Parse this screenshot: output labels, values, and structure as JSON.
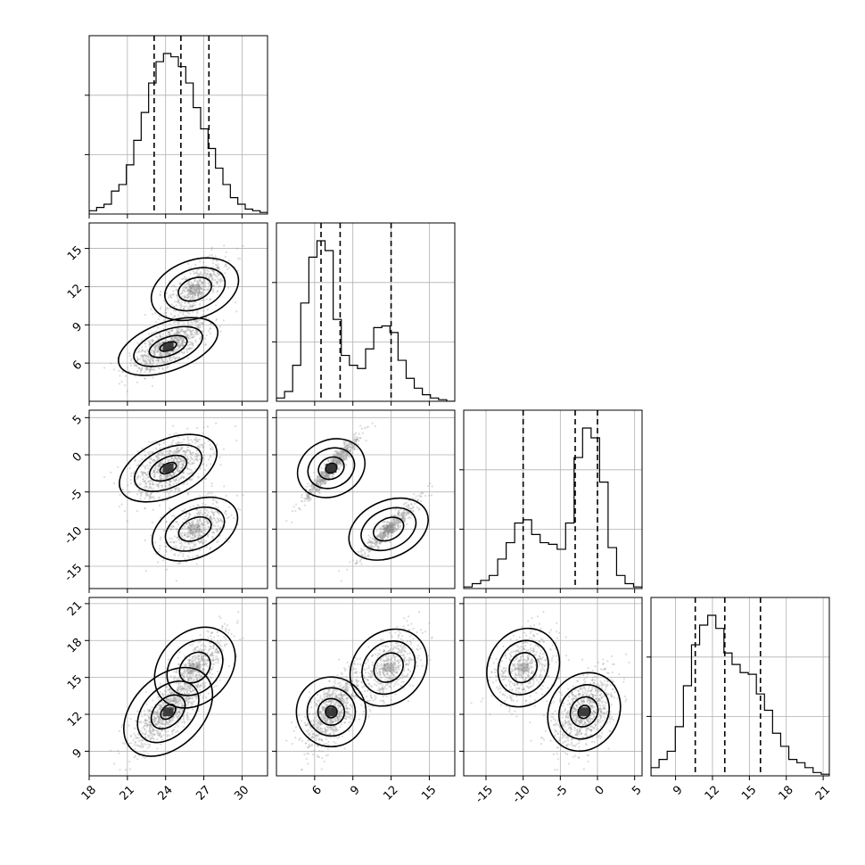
{
  "chart_data": {
    "type": "corner",
    "parameters": [
      {
        "range": [
          18,
          32
        ],
        "ticks": [
          18,
          21,
          24,
          27,
          30
        ],
        "quantiles": [
          23.1,
          25.2,
          27.4
        ],
        "hist_edges_range": [
          18,
          32
        ],
        "hist_counts": [
          2,
          4,
          6,
          14,
          18,
          30,
          45,
          62,
          80,
          93,
          98,
          96,
          90,
          80,
          65,
          52,
          40,
          28,
          18,
          10,
          6,
          3,
          2,
          1
        ]
      },
      {
        "range": [
          3,
          17
        ],
        "ticks": [
          6,
          9,
          12,
          15
        ],
        "quantiles": [
          6.5,
          8.0,
          12.0
        ],
        "hist_edges_range": [
          3,
          17
        ],
        "hist_counts": [
          2,
          6,
          22,
          60,
          88,
          98,
          92,
          50,
          28,
          22,
          20,
          32,
          45,
          46,
          42,
          25,
          14,
          8,
          4,
          2,
          1,
          0
        ]
      },
      {
        "range": [
          -18,
          6
        ],
        "ticks": [
          -15,
          -10,
          -5,
          0,
          5
        ],
        "quantiles": [
          -10.0,
          -3.0,
          0.0
        ],
        "hist_edges_range": [
          -18,
          6
        ],
        "hist_counts": [
          1,
          3,
          5,
          8,
          18,
          28,
          40,
          42,
          33,
          28,
          27,
          24,
          40,
          80,
          98,
          92,
          65,
          25,
          8,
          3,
          1
        ]
      },
      {
        "range": [
          7,
          21.5
        ],
        "ticks": [
          9,
          12,
          15,
          18,
          21
        ],
        "quantiles": [
          10.6,
          13.0,
          15.9
        ],
        "hist_edges_range": [
          7,
          21.5
        ],
        "hist_counts": [
          5,
          10,
          15,
          30,
          55,
          80,
          92,
          98,
          90,
          75,
          68,
          63,
          62,
          50,
          40,
          26,
          18,
          10,
          8,
          5,
          2,
          1
        ]
      }
    ],
    "modes": [
      {
        "mean": [
          24.2,
          7.3,
          -1.8,
          12.2
        ],
        "sd": [
          1.5,
          1.0,
          2.0,
          1.5
        ]
      },
      {
        "mean": [
          26.3,
          11.8,
          -10.0,
          15.8
        ],
        "sd": [
          1.3,
          1.2,
          2.0,
          1.5
        ]
      }
    ]
  }
}
